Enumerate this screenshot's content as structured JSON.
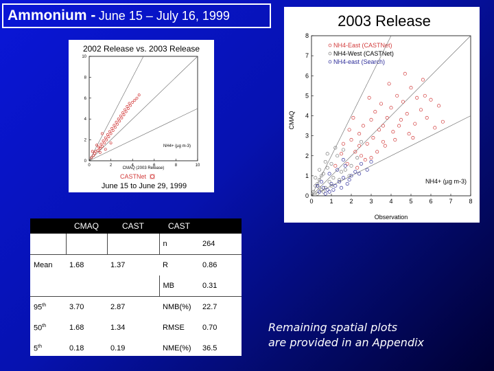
{
  "title": {
    "main": "Ammonium -",
    "dates": "June 15 –  July 16, 1999"
  },
  "left_plot": {
    "title": "2002 Release vs. 2003 Release",
    "xlabel": "CMAQ (2003 Release)",
    "species_label": "NH4+ (µg m-3)",
    "network_label": "CASTNet",
    "date_range": "June 15  to  June 29,  1999"
  },
  "right_plot": {
    "title": "2003 Release",
    "xlabel": "Observation",
    "ylabel": "CMAQ",
    "species_label": "NH4+ (µg m-3)",
    "legend": [
      "NH4-East (CASTNet)",
      "NH4-West (CASTNet)",
      "NH4-east (Search)"
    ]
  },
  "table": {
    "headers": [
      "",
      "CMAQ",
      "CAST",
      "CAST",
      ""
    ],
    "rows": [
      [
        "",
        "",
        "",
        "n",
        "264"
      ],
      [
        "Mean",
        "1.68",
        "1.37",
        "R",
        "0.86"
      ],
      [
        "",
        "",
        "",
        "MB",
        "0.31"
      ],
      [
        "95th",
        "3.70",
        "2.87",
        "NMB(%)",
        "22.7"
      ],
      [
        "50th",
        "1.68",
        "1.34",
        "RMSE",
        "0.70"
      ],
      [
        "5th",
        "0.18",
        "0.19",
        "NME(%)",
        "36.5"
      ]
    ]
  },
  "note": {
    "line1": "Remaining spatial plots",
    "line2": "are provided in an Appendix"
  },
  "colors": {
    "east": "#d23a3a",
    "west": "#7a7a7a",
    "search": "#2d2d9a",
    "background": "#0612b0"
  },
  "chart_data": [
    {
      "type": "scatter",
      "title": "2002 Release vs. 2003 Release",
      "xlabel": "CMAQ (2003 Release)",
      "ylabel": "",
      "xlim": [
        0,
        10
      ],
      "ylim": [
        0,
        10
      ],
      "x_ticks": [
        0,
        2,
        4,
        6,
        8,
        10
      ],
      "y_ticks": [
        0,
        2,
        4,
        6,
        8,
        10
      ],
      "series": [
        {
          "name": "",
          "color": "#d23a3a",
          "points": [
            [
              0.2,
              0.3
            ],
            [
              0.4,
              0.5
            ],
            [
              0.5,
              0.7
            ],
            [
              0.6,
              0.9
            ],
            [
              0.8,
              1.0
            ],
            [
              0.9,
              1.3
            ],
            [
              1.0,
              1.2
            ],
            [
              1.1,
              1.6
            ],
            [
              1.2,
              1.4
            ],
            [
              1.3,
              1.9
            ],
            [
              1.4,
              1.7
            ],
            [
              1.5,
              2.2
            ],
            [
              1.6,
              2.0
            ],
            [
              1.7,
              2.5
            ],
            [
              1.8,
              2.3
            ],
            [
              1.9,
              2.8
            ],
            [
              2.0,
              2.6
            ],
            [
              2.1,
              3.1
            ],
            [
              2.2,
              2.9
            ],
            [
              2.3,
              3.4
            ],
            [
              2.4,
              3.2
            ],
            [
              2.5,
              3.7
            ],
            [
              2.6,
              3.5
            ],
            [
              2.7,
              4.0
            ],
            [
              2.8,
              3.8
            ],
            [
              2.9,
              4.3
            ],
            [
              3.0,
              4.1
            ],
            [
              3.1,
              4.6
            ],
            [
              3.2,
              4.4
            ],
            [
              3.3,
              4.9
            ],
            [
              3.4,
              4.7
            ],
            [
              3.5,
              5.2
            ],
            [
              3.6,
              5.0
            ],
            [
              3.7,
              5.5
            ],
            [
              3.8,
              5.3
            ],
            [
              4.0,
              5.6
            ],
            [
              4.2,
              5.8
            ],
            [
              4.4,
              6.0
            ],
            [
              4.6,
              6.3
            ],
            [
              1.0,
              0.8
            ],
            [
              1.5,
              1.1
            ],
            [
              2.0,
              1.7
            ],
            [
              0.7,
              1.5
            ],
            [
              1.2,
              2.6
            ],
            [
              0.3,
              0.9
            ]
          ]
        }
      ]
    },
    {
      "type": "scatter",
      "title": "2003 Release",
      "xlabel": "Observation",
      "ylabel": "CMAQ",
      "xlim": [
        0,
        8
      ],
      "ylim": [
        0,
        8
      ],
      "x_ticks": [
        0,
        1,
        2,
        3,
        4,
        5,
        6,
        7,
        8
      ],
      "y_ticks": [
        0,
        1,
        2,
        3,
        4,
        5,
        6,
        7,
        8
      ],
      "legend_position": "top-right",
      "series": [
        {
          "name": "NH4-East (CASTNet)",
          "color": "#d23a3a",
          "points": [
            [
              1.2,
              1.5
            ],
            [
              1.5,
              2.1
            ],
            [
              1.8,
              1.6
            ],
            [
              2.0,
              2.8
            ],
            [
              2.2,
              2.2
            ],
            [
              2.4,
              3.1
            ],
            [
              2.5,
              2.0
            ],
            [
              2.6,
              3.5
            ],
            [
              2.8,
              2.6
            ],
            [
              3.0,
              3.8
            ],
            [
              3.1,
              2.9
            ],
            [
              3.2,
              4.2
            ],
            [
              3.4,
              3.3
            ],
            [
              3.5,
              4.6
            ],
            [
              3.6,
              2.7
            ],
            [
              3.8,
              3.9
            ],
            [
              4.0,
              4.4
            ],
            [
              4.1,
              3.2
            ],
            [
              4.3,
              5.0
            ],
            [
              4.5,
              3.8
            ],
            [
              4.6,
              4.7
            ],
            [
              4.8,
              4.1
            ],
            [
              5.0,
              5.4
            ],
            [
              5.2,
              3.6
            ],
            [
              5.3,
              4.9
            ],
            [
              5.5,
              4.3
            ],
            [
              5.6,
              5.8
            ],
            [
              5.8,
              3.9
            ],
            [
              6.0,
              4.8
            ],
            [
              6.2,
              3.4
            ],
            [
              2.3,
              1.4
            ],
            [
              2.7,
              1.8
            ],
            [
              3.3,
              2.2
            ],
            [
              3.7,
              2.5
            ],
            [
              4.2,
              2.8
            ],
            [
              4.4,
              3.5
            ],
            [
              4.9,
              3.1
            ],
            [
              5.1,
              2.9
            ],
            [
              1.6,
              2.6
            ],
            [
              1.9,
              3.3
            ],
            [
              2.1,
              3.9
            ],
            [
              2.9,
              4.9
            ],
            [
              3.9,
              5.6
            ],
            [
              4.7,
              6.1
            ],
            [
              5.7,
              5.0
            ],
            [
              6.4,
              4.5
            ],
            [
              6.6,
              3.7
            ],
            [
              3.0,
              1.9
            ],
            [
              3.6,
              3.5
            ],
            [
              2.4,
              2.5
            ]
          ]
        },
        {
          "name": "NH4-West (CASTNet)",
          "color": "#7a7a7a",
          "points": [
            [
              0.1,
              0.2
            ],
            [
              0.2,
              0.5
            ],
            [
              0.3,
              0.1
            ],
            [
              0.4,
              0.8
            ],
            [
              0.5,
              0.3
            ],
            [
              0.6,
              1.1
            ],
            [
              0.7,
              0.4
            ],
            [
              0.8,
              1.4
            ],
            [
              0.3,
              0.6
            ],
            [
              0.5,
              1.0
            ],
            [
              0.9,
              0.7
            ],
            [
              1.0,
              1.6
            ],
            [
              1.1,
              0.9
            ],
            [
              1.3,
              2.0
            ],
            [
              1.5,
              1.2
            ],
            [
              0.2,
              0.9
            ],
            [
              0.4,
              1.3
            ],
            [
              0.6,
              0.2
            ],
            [
              1.4,
              0.8
            ],
            [
              1.7,
              1.3
            ],
            [
              2.0,
              1.5
            ],
            [
              2.3,
              1.9
            ],
            [
              0.8,
              2.1
            ],
            [
              1.2,
              2.4
            ],
            [
              1.0,
              0.5
            ],
            [
              0.7,
              1.7
            ],
            [
              1.6,
              2.3
            ],
            [
              1.9,
              1.0
            ],
            [
              2.5,
              2.7
            ],
            [
              0.4,
              0.4
            ]
          ]
        },
        {
          "name": "NH4-east (Search)",
          "color": "#2d2d9a",
          "points": [
            [
              0.4,
              0.2
            ],
            [
              0.6,
              0.4
            ],
            [
              0.8,
              0.3
            ],
            [
              1.0,
              0.6
            ],
            [
              1.2,
              0.5
            ],
            [
              1.4,
              0.7
            ],
            [
              1.6,
              0.9
            ],
            [
              1.8,
              0.6
            ],
            [
              2.0,
              1.0
            ],
            [
              0.5,
              0.7
            ],
            [
              0.9,
              1.1
            ],
            [
              1.3,
              1.3
            ],
            [
              1.7,
              1.5
            ],
            [
              2.2,
              1.2
            ],
            [
              2.5,
              1.6
            ],
            [
              1.1,
              0.3
            ],
            [
              0.7,
              0.1
            ],
            [
              1.5,
              0.4
            ],
            [
              1.9,
              0.8
            ],
            [
              2.4,
              1.1
            ],
            [
              2.8,
              1.3
            ],
            [
              3.0,
              1.7
            ],
            [
              0.3,
              0.5
            ],
            [
              0.9,
              0.2
            ],
            [
              1.6,
              1.8
            ]
          ]
        }
      ]
    }
  ]
}
